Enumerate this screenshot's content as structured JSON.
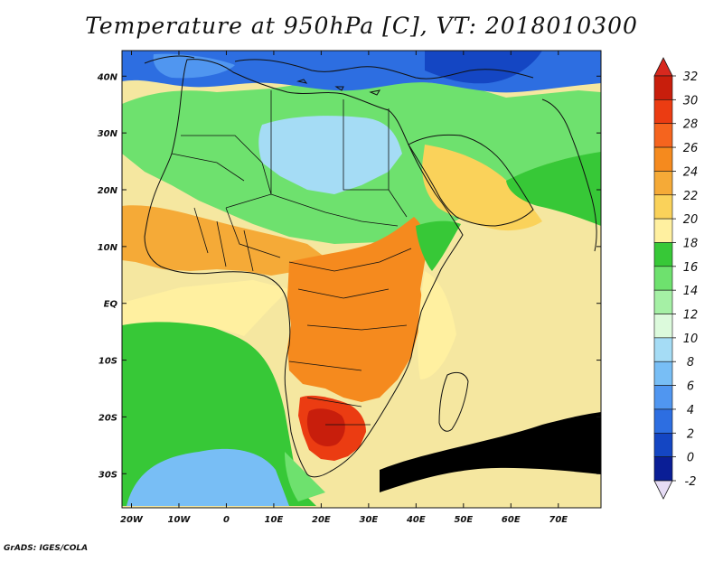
{
  "title": "Temperature at 950hPa [C], VT: 2018010300",
  "credit": "GrADS: IGES/COLA",
  "lat_labels": [
    "40N",
    "30N",
    "20N",
    "10N",
    "EQ",
    "10S",
    "20S",
    "30S"
  ],
  "lon_labels": [
    "20W",
    "10W",
    "0",
    "10E",
    "20E",
    "30E",
    "40E",
    "50E",
    "60E",
    "70E"
  ],
  "colorbar": {
    "labels": [
      "32",
      "30",
      "28",
      "26",
      "24",
      "22",
      "20",
      "18",
      "16",
      "14",
      "12",
      "10",
      "8",
      "6",
      "4",
      "2",
      "0",
      "-2"
    ],
    "colors": [
      "#c81e0c",
      "#eb3c12",
      "#f5641e",
      "#f58a1e",
      "#f5aa37",
      "#fad25a",
      "#fff0a0",
      "#37c837",
      "#6ee16e",
      "#a5f0a5",
      "#dcfadc",
      "#a5dcf5",
      "#78bef5",
      "#5096f0",
      "#2d6ee1",
      "#1446c3",
      "#0a1e96"
    ],
    "top_arrow_color": "#d7281e",
    "bottom_arrow_color": "#e6dcf5"
  },
  "map": {
    "lon_range": [
      -22,
      79
    ],
    "lat_range": [
      -36,
      44.5
    ],
    "ocean_color": "#f5e7a0",
    "regions": [
      {
        "name": "southern-ocean-green",
        "color": "#37c837"
      },
      {
        "name": "south-atlantic-light",
        "color": "#78bef5"
      },
      {
        "name": "tropical-atlantic",
        "color": "#fff0a0"
      },
      {
        "name": "sahara",
        "color": "#6ee16e"
      },
      {
        "name": "central-sahara-cold",
        "color": "#a5dcf5"
      },
      {
        "name": "mediterranean-cold",
        "color": "#2d6ee1"
      },
      {
        "name": "west-africa-warm",
        "color": "#f5aa37"
      },
      {
        "name": "central-east-africa-hot",
        "color": "#f58a1e"
      },
      {
        "name": "southern-africa-hot",
        "color": "#eb3c12"
      },
      {
        "name": "arabia-warm",
        "color": "#fad25a"
      },
      {
        "name": "indian-ocean-band",
        "color": "#37c837"
      }
    ]
  }
}
